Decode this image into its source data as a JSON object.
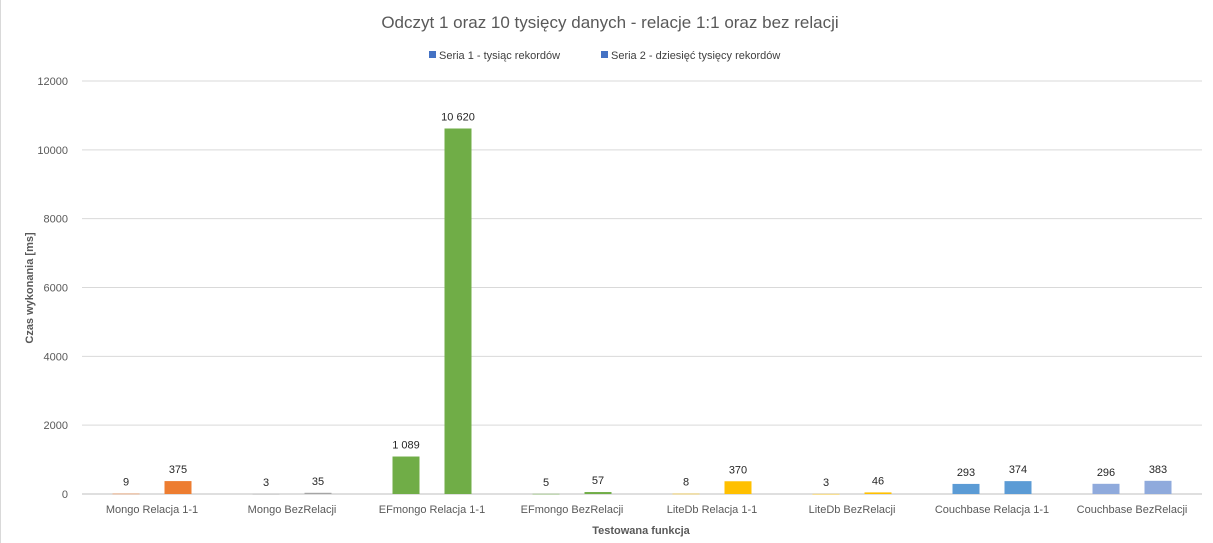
{
  "chart_data": {
    "type": "bar",
    "title": "Odczyt 1 oraz 10 tysięcy danych - relacje 1:1 oraz bez relacji",
    "xlabel": "Testowana funkcja",
    "ylabel": "Czas wykonania [ms]",
    "ylim": [
      0,
      12000
    ],
    "yticks": [
      0,
      2000,
      4000,
      6000,
      8000,
      10000,
      12000
    ],
    "grid": true,
    "legend_position": "top",
    "legend": [
      {
        "name": "Seria 1 - tysiąc rekordów",
        "color": "#4472c4"
      },
      {
        "name": "Seria 2 - dziesięć tysięcy rekordów",
        "color": "#4472c4"
      }
    ],
    "categories": [
      "Mongo Relacja 1-1",
      "Mongo BezRelacji",
      "EFmongo Relacja 1-1",
      "EFmongo BezRelacji",
      "LiteDb Relacja 1-1",
      "LiteDb BezRelacji",
      "Couchbase Relacja 1-1",
      "Couchbase BezRelacji"
    ],
    "category_colors": [
      "#ed7d31",
      "#a5a5a5",
      "#70ad47",
      "#70ad47",
      "#ffc000",
      "#ffc000",
      "#5b9bd5",
      "#8faadc"
    ],
    "series": [
      {
        "name": "Seria 1 - tysiąc rekordów",
        "values": [
          9,
          3,
          1089,
          5,
          8,
          3,
          293,
          296
        ],
        "labels": [
          "9",
          "3",
          "1 089",
          "5",
          "8",
          "3",
          "293",
          "296"
        ]
      },
      {
        "name": "Seria 2 - dziesięć tysięcy rekordów",
        "values": [
          375,
          35,
          10620,
          57,
          370,
          46,
          374,
          383
        ],
        "labels": [
          "375",
          "35",
          "10 620",
          "57",
          "370",
          "46",
          "374",
          "383"
        ]
      }
    ]
  }
}
